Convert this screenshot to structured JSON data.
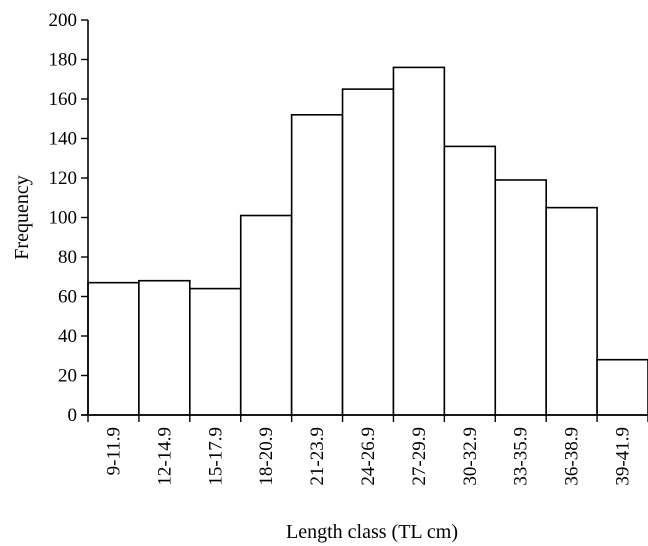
{
  "chart_data": {
    "type": "bar",
    "title": "",
    "xlabel": "Length class (TL cm)",
    "ylabel": "Frequency",
    "categories": [
      "9-11.9",
      "12-14.9",
      "15-17.9",
      "18-20.9",
      "21-23.9",
      "24-26.9",
      "27-29.9",
      "30-32.9",
      "33-35.9",
      "36-38.9",
      "39-41.9"
    ],
    "values": [
      67,
      68,
      64,
      101,
      152,
      165,
      176,
      136,
      119,
      105,
      28
    ],
    "ylim": [
      0,
      200
    ],
    "yticks": [
      0,
      20,
      40,
      60,
      80,
      100,
      120,
      140,
      160,
      180,
      200
    ],
    "grid": false,
    "legend": "none",
    "bar_fill": "#ffffff",
    "bar_stroke": "#000000"
  }
}
